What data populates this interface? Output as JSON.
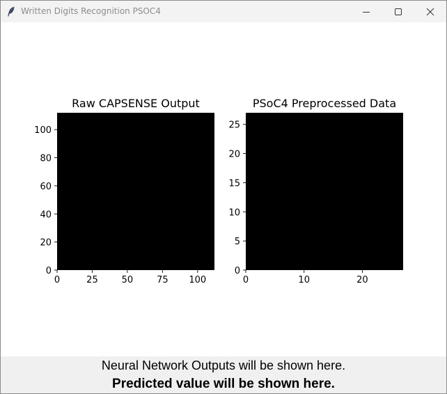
{
  "window": {
    "title": "Written Digits Recognition PSOC4",
    "icon": "feather-icon",
    "controls": {
      "minimize": "minimize-icon",
      "maximize": "maximize-icon",
      "close": "close-icon"
    },
    "title_color": "#8c8c8c",
    "titlebar_color": "#f3f3f3"
  },
  "chart_data": [
    {
      "type": "heatmap",
      "title": "Raw CAPSENSE Output",
      "xlabel": "",
      "ylabel": "",
      "xlim": [
        0,
        112
      ],
      "ylim": [
        0,
        112
      ],
      "xticks": [
        0,
        25,
        50,
        75,
        100
      ],
      "yticks": [
        0,
        20,
        40,
        60,
        80,
        100
      ],
      "xtick_labels": [
        "0",
        "25",
        "50",
        "75",
        "100"
      ],
      "ytick_labels": [
        "0",
        "20",
        "40",
        "60",
        "80",
        "100"
      ],
      "fill_color": "#000000",
      "grid": false
    },
    {
      "type": "heatmap",
      "title": "PSoC4 Preprocessed Data",
      "xlabel": "",
      "ylabel": "",
      "xlim": [
        0,
        27
      ],
      "ylim": [
        0,
        27
      ],
      "xticks": [
        0,
        10,
        20
      ],
      "yticks": [
        0,
        5,
        10,
        15,
        20,
        25
      ],
      "xtick_labels": [
        "0",
        "10",
        "20"
      ],
      "ytick_labels": [
        "0",
        "5",
        "10",
        "15",
        "20",
        "25"
      ],
      "fill_color": "#000000",
      "grid": false
    }
  ],
  "status": {
    "nn_outputs": "Neural Network Outputs will be shown here.",
    "prediction": "Predicted value will be shown here."
  }
}
